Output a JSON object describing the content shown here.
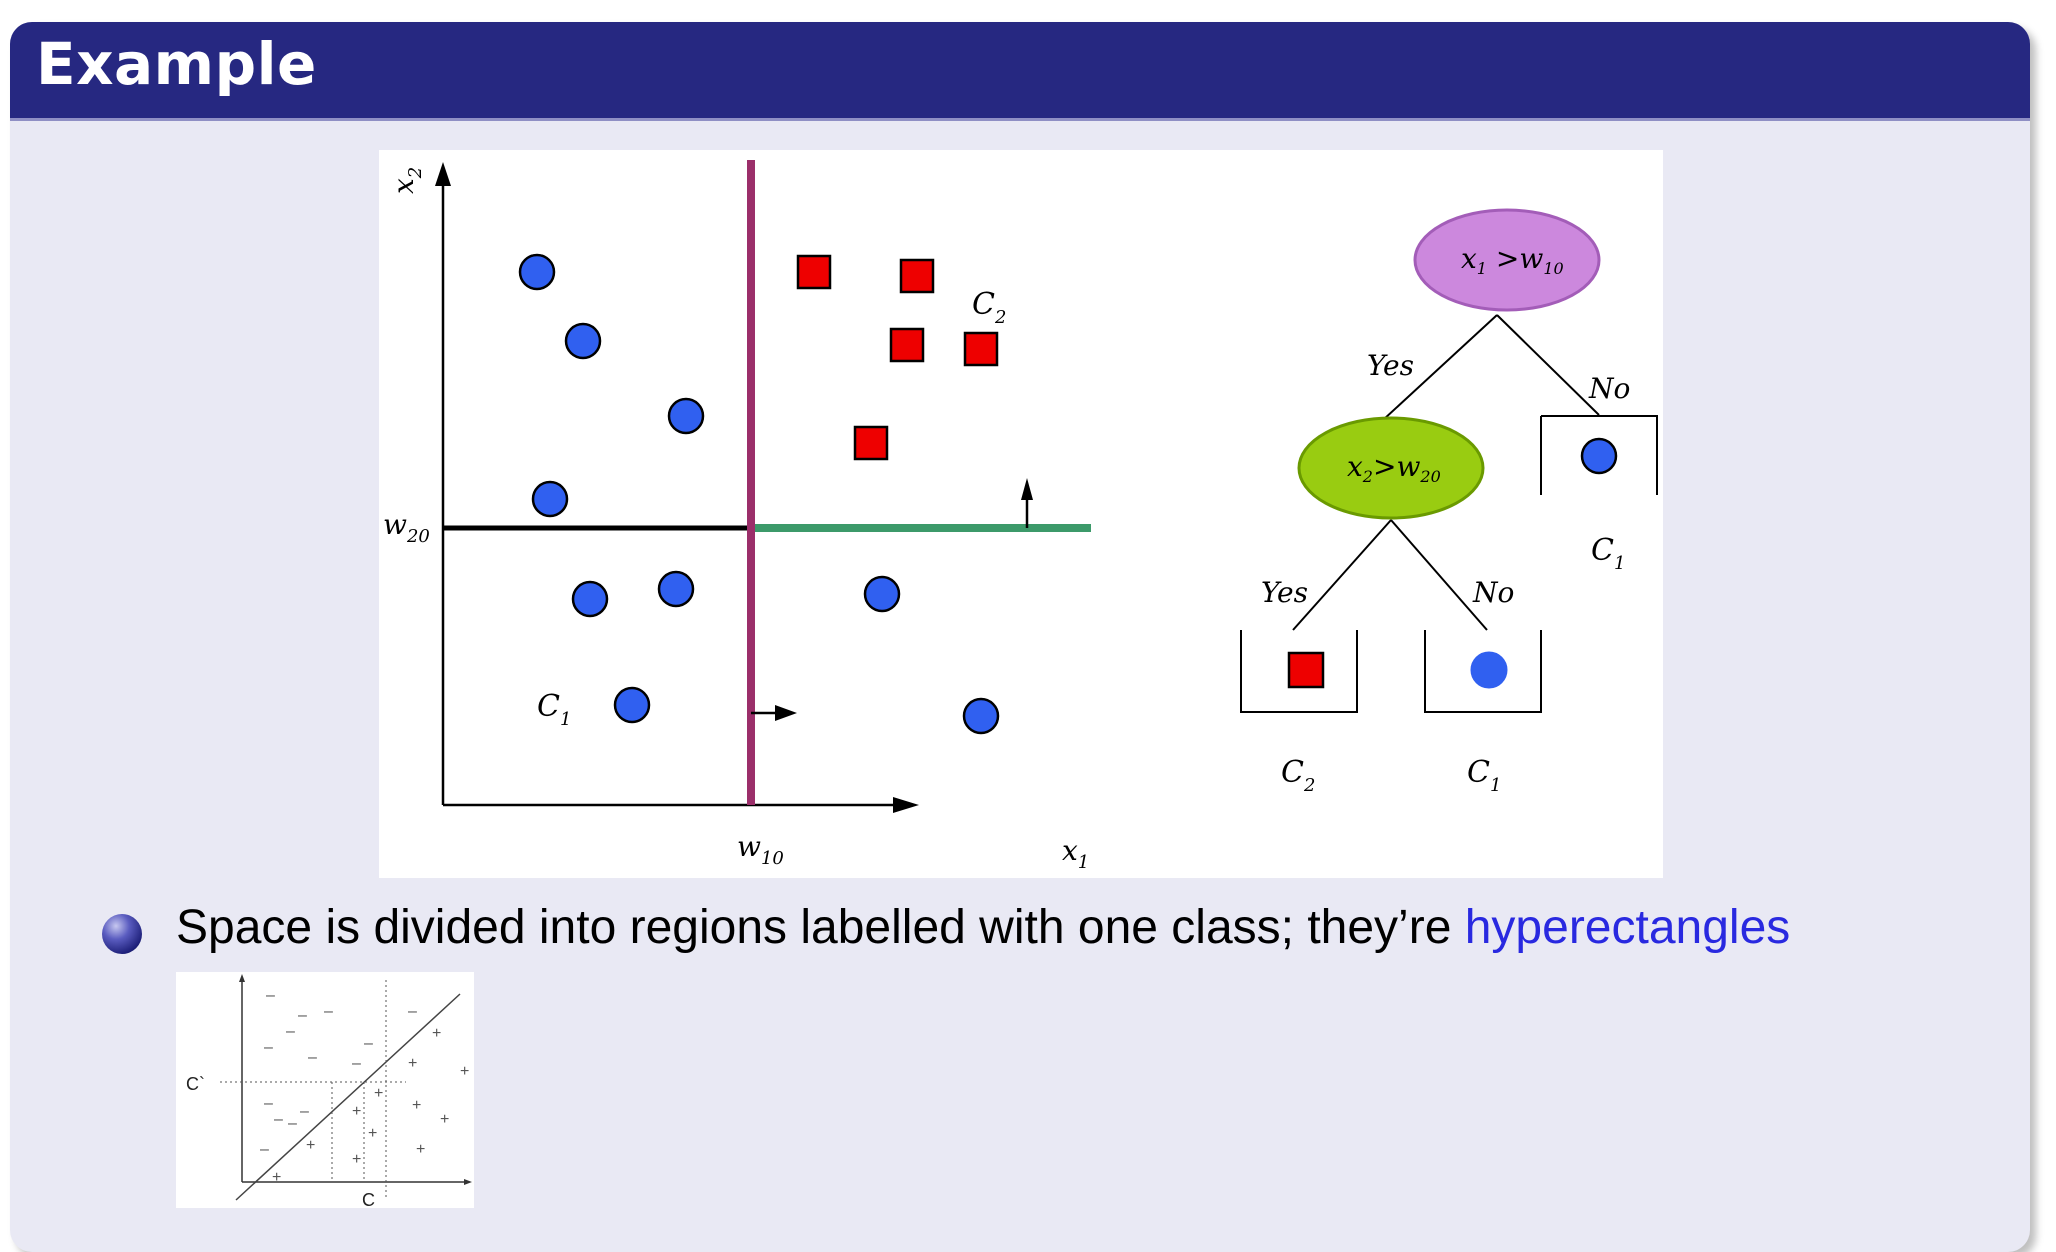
{
  "slide": {
    "title": "Example",
    "bullet": {
      "text": "Space is divided into regions labelled with one class; they’re ",
      "link_text": "hyperectangles"
    }
  },
  "scatter": {
    "axis_x_label": "x",
    "axis_x_sub": "1",
    "axis_y_label": "x",
    "axis_y_sub": "2",
    "split_x_label": "w",
    "split_x_sub": "10",
    "split_y_label": "w",
    "split_y_sub": "20",
    "class1_label": "C",
    "class1_sub": "1",
    "class2_label": "C",
    "class2_sub": "2"
  },
  "tree": {
    "root": {
      "text": "x",
      "sub1": "1",
      "op": " >w",
      "sub2": "10"
    },
    "inner": {
      "text": "x",
      "sub1": "2",
      "op": ">w",
      "sub2": "20"
    },
    "root_yes": "Yes",
    "root_no": "No",
    "inner_yes": "Yes",
    "inner_no": "No",
    "leaf_right": {
      "text": "C",
      "sub": "1"
    },
    "leaf_bottom_left": {
      "text": "C",
      "sub": "2"
    },
    "leaf_bottom_right": {
      "text": "C",
      "sub": "1"
    }
  },
  "thumbnail": {
    "x_label": "C",
    "y_label": "C`",
    "minus": "–",
    "plus": "+"
  },
  "colors": {
    "title_bar": "#262881",
    "circle_class": "#3060f0",
    "square_class": "#ee0000",
    "split_x_line": "#9b2f6a",
    "split_y_line": "#3c9a6a",
    "root_node": "#cc88dd",
    "inner_node": "#99cc11",
    "link": "#2929e0"
  }
}
